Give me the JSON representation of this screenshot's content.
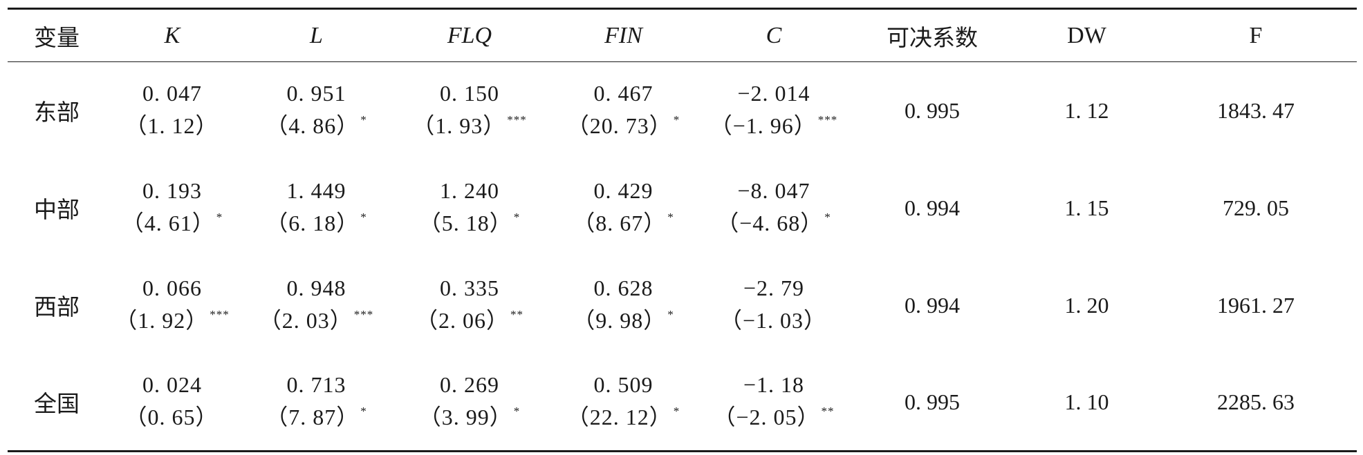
{
  "table": {
    "headers": [
      "变量",
      "K",
      "L",
      "FLQ",
      "FIN",
      "C",
      "可决系数",
      "DW",
      "F"
    ],
    "rows": [
      {
        "label": "东部",
        "cells": [
          {
            "coef": "0. 047",
            "t": "1. 12",
            "sig": ""
          },
          {
            "coef": "0. 951",
            "t": "4. 86",
            "sig": "*"
          },
          {
            "coef": "0. 150",
            "t": "1. 93",
            "sig": "***"
          },
          {
            "coef": "0. 467",
            "t": "20. 73",
            "sig": "*"
          },
          {
            "coef": "−2. 014",
            "t": "−1. 96",
            "sig": "***"
          }
        ],
        "r2": "0. 995",
        "dw": "1. 12",
        "f": "1843. 47"
      },
      {
        "label": "中部",
        "cells": [
          {
            "coef": "0. 193",
            "t": "4. 61",
            "sig": "*"
          },
          {
            "coef": "1. 449",
            "t": "6. 18",
            "sig": "*"
          },
          {
            "coef": "1. 240",
            "t": "5. 18",
            "sig": "*"
          },
          {
            "coef": "0. 429",
            "t": "8. 67",
            "sig": "*"
          },
          {
            "coef": "−8. 047",
            "t": "−4. 68",
            "sig": "*"
          }
        ],
        "r2": "0. 994",
        "dw": "1. 15",
        "f": "729. 05"
      },
      {
        "label": "西部",
        "cells": [
          {
            "coef": "0. 066",
            "t": "1. 92",
            "sig": "***"
          },
          {
            "coef": "0. 948",
            "t": "2. 03",
            "sig": "***"
          },
          {
            "coef": "0. 335",
            "t": "2. 06",
            "sig": "**"
          },
          {
            "coef": "0. 628",
            "t": "9. 98",
            "sig": "*"
          },
          {
            "coef": "−2. 79",
            "t": "−1. 03",
            "sig": ""
          }
        ],
        "r2": "0. 994",
        "dw": "1. 20",
        "f": "1961. 27"
      },
      {
        "label": "全国",
        "cells": [
          {
            "coef": "0. 024",
            "t": "0. 65",
            "sig": ""
          },
          {
            "coef": "0. 713",
            "t": "7. 87",
            "sig": "*"
          },
          {
            "coef": "0. 269",
            "t": "3. 99",
            "sig": "*"
          },
          {
            "coef": "0. 509",
            "t": "22. 12",
            "sig": "*"
          },
          {
            "coef": "−1. 18",
            "t": "−2. 05",
            "sig": "**"
          }
        ],
        "r2": "0. 995",
        "dw": "1. 10",
        "f": "2285. 63"
      }
    ]
  }
}
